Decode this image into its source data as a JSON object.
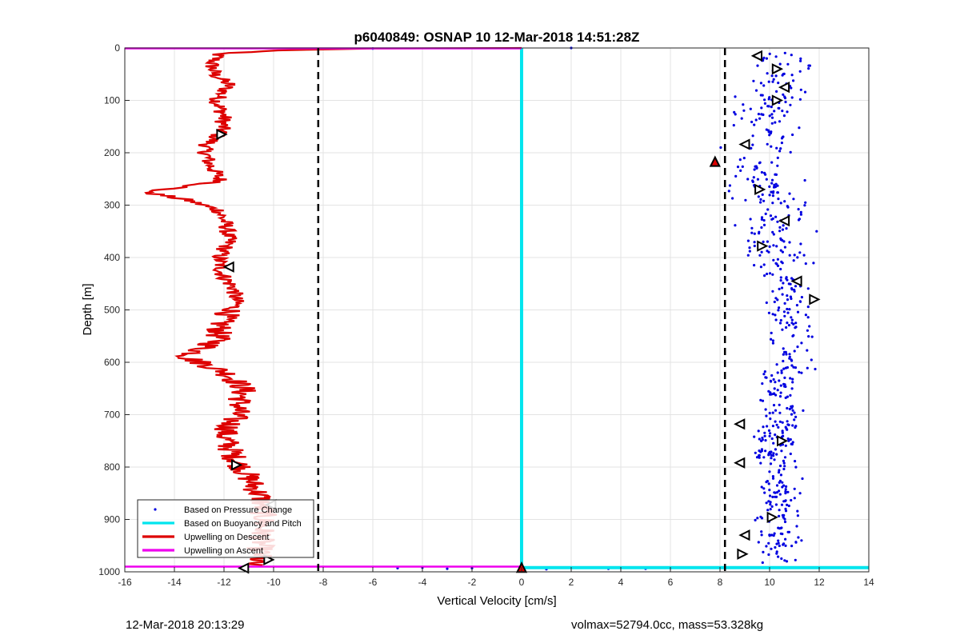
{
  "chart_data": {
    "type": "scatter",
    "title": "p6040849: OSNAP 10 12-Mar-2018 14:51:28Z",
    "xlabel": "Vertical Velocity [cm/s]",
    "ylabel": "Depth [m]",
    "xlim": [
      -16,
      14
    ],
    "ylim": [
      0,
      1000
    ],
    "y_reversed": true,
    "grid": true,
    "xticks": [
      -16,
      -14,
      -12,
      -10,
      -8,
      -6,
      -4,
      -2,
      0,
      2,
      4,
      6,
      8,
      10,
      12,
      14
    ],
    "yticks": [
      0,
      100,
      200,
      300,
      400,
      500,
      600,
      700,
      800,
      900,
      1000
    ],
    "legend_location": "bottom-left",
    "reference_lines_x": [
      -8.2,
      8.2
    ],
    "series": [
      {
        "name": "Based on Pressure Change",
        "color": "#0000e0",
        "marker": "dot",
        "depth_range": [
          0,
          992
        ],
        "velocity_range": [
          8,
          13
        ]
      },
      {
        "name": "Based on Buoyancy and Pitch",
        "color": "#00e5ee",
        "marker": "line",
        "x": [
          0,
          0,
          14
        ],
        "y": [
          0,
          992,
          992
        ]
      },
      {
        "name": "Upwelling on Descent",
        "color": "#dd0000",
        "marker": "line",
        "profile": [
          [
            0,
            -6
          ],
          [
            5,
            -10
          ],
          [
            10,
            -12.2
          ],
          [
            30,
            -12.5
          ],
          [
            50,
            -12.4
          ],
          [
            70,
            -11.8
          ],
          [
            100,
            -12.3
          ],
          [
            130,
            -12
          ],
          [
            160,
            -12.1
          ],
          [
            190,
            -12.8
          ],
          [
            220,
            -12.6
          ],
          [
            255,
            -12.1
          ],
          [
            265,
            -13.6
          ],
          [
            275,
            -15.2
          ],
          [
            290,
            -13.5
          ],
          [
            310,
            -12.2
          ],
          [
            340,
            -11.9
          ],
          [
            370,
            -11.8
          ],
          [
            400,
            -12.2
          ],
          [
            430,
            -12.1
          ],
          [
            460,
            -11.6
          ],
          [
            490,
            -11.5
          ],
          [
            520,
            -12.1
          ],
          [
            560,
            -12.3
          ],
          [
            590,
            -13.5
          ],
          [
            620,
            -11.9
          ],
          [
            650,
            -11.2
          ],
          [
            700,
            -11.5
          ],
          [
            740,
            -12
          ],
          [
            780,
            -11.6
          ],
          [
            820,
            -11
          ],
          [
            860,
            -10.5
          ],
          [
            900,
            -10.4
          ],
          [
            940,
            -10.5
          ],
          [
            975,
            -10.6
          ],
          [
            990,
            -11
          ]
        ]
      },
      {
        "name": "Upwelling on Ascent",
        "color": "#ee00ee",
        "marker": "line",
        "x": [
          -16,
          0,
          0,
          -16
        ],
        "y": [
          0,
          0,
          990,
          990
        ]
      }
    ],
    "markers": {
      "descent": [
        [
          -12.1,
          165
        ],
        [
          -11.8,
          418
        ],
        [
          -11.5,
          796
        ],
        [
          -10.1,
          872
        ],
        [
          -10.2,
          977
        ],
        [
          -11.2,
          993
        ]
      ],
      "ascent": [
        [
          9.5,
          15
        ],
        [
          10.3,
          40
        ],
        [
          10.6,
          75
        ],
        [
          10.3,
          100
        ],
        [
          9,
          184
        ],
        [
          9.6,
          270
        ],
        [
          10.6,
          330
        ],
        [
          9.7,
          378
        ],
        [
          11.1,
          445
        ],
        [
          11.8,
          480
        ],
        [
          8.8,
          718
        ],
        [
          10.5,
          750
        ],
        [
          8.8,
          792
        ],
        [
          10.1,
          896
        ],
        [
          9,
          930
        ],
        [
          8.9,
          966
        ]
      ],
      "flagged": [
        [
          7.8,
          217
        ],
        [
          0,
          992
        ]
      ]
    }
  },
  "footer": {
    "left": "12-Mar-2018 20:13:29",
    "right": "volmax=52794.0cc, mass=53.328kg"
  }
}
